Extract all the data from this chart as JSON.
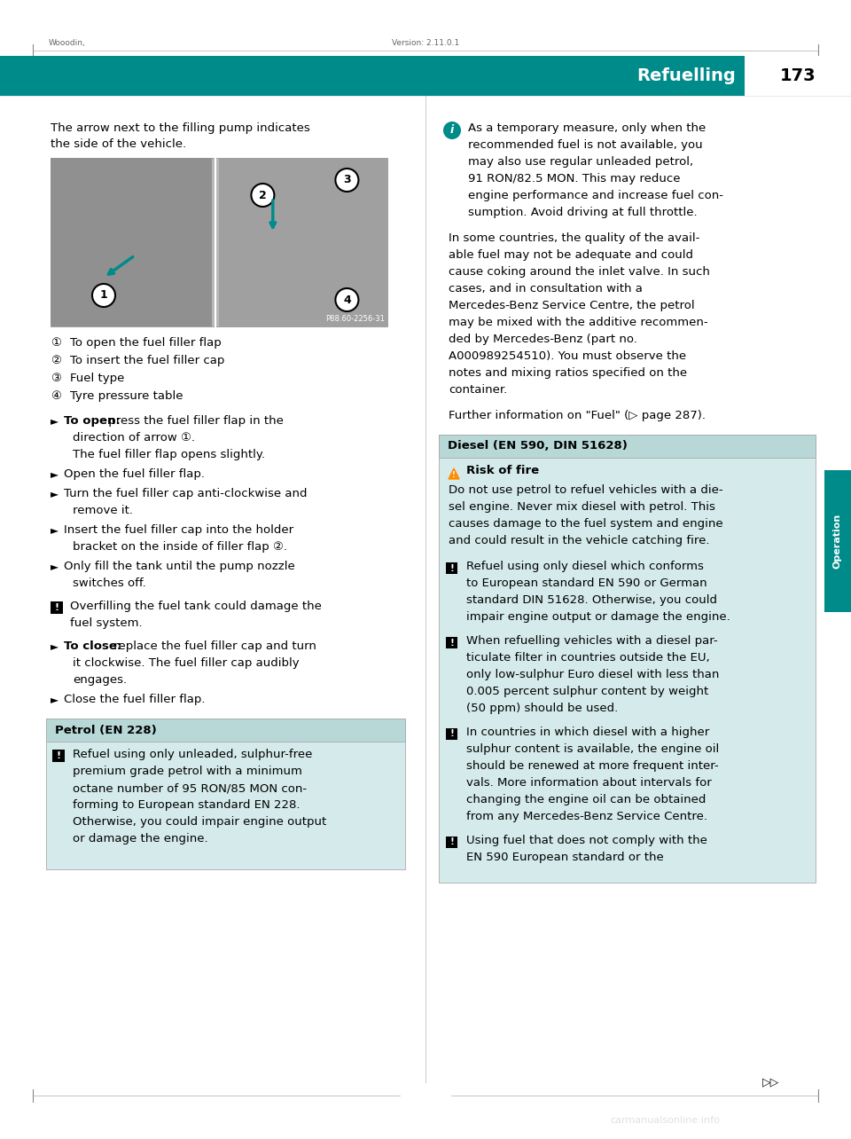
{
  "page_bg": "#ffffff",
  "teal_color": "#008B8B",
  "page_number": "173",
  "section_title": "Refuelling",
  "top_meta_left": "Wooodin,",
  "top_meta_right": "Version: 2.11.0.1",
  "watermark": "carmanualsonline.info",
  "image_caption": "P88.60-2256-31",
  "numbered_items": [
    "To open the fuel filler flap",
    "To insert the fuel filler cap",
    "Fuel type",
    "Tyre pressure table"
  ],
  "petrol_box_title": "Petrol (EN 228)",
  "diesel_box_title": "Diesel (EN 590, DIN 51628)",
  "risk_of_fire": "Risk of fire",
  "font_size_body": 9.5,
  "font_size_header": 13
}
